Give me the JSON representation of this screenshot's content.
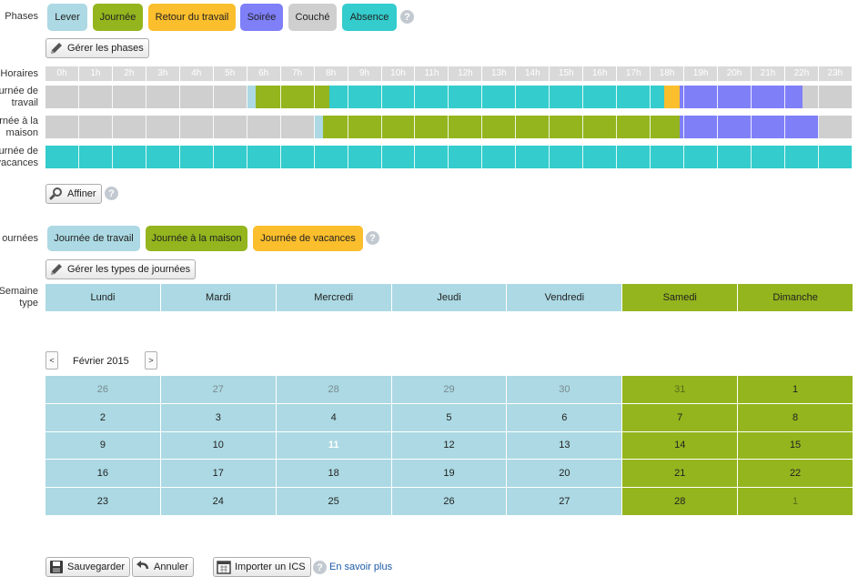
{
  "colors": {
    "lever": "#acd9e3",
    "journee": "#94b51e",
    "retour": "#fbbe2c",
    "soiree": "#7f7ff8",
    "couche": "#cfcfcf",
    "absence": "#34cccc",
    "weekday": "#acd9e3",
    "weekend": "#94b51e"
  },
  "labels": {
    "phases": "Phases",
    "horaires": "Horaires",
    "journees": "ournées",
    "semaine_type": "Semaine\ntype"
  },
  "phases": [
    {
      "key": "lever",
      "label": "Lever"
    },
    {
      "key": "journee",
      "label": "Journée"
    },
    {
      "key": "retour",
      "label": "Retour du travail"
    },
    {
      "key": "soiree",
      "label": "Soirée"
    },
    {
      "key": "couche",
      "label": "Couché"
    },
    {
      "key": "absence",
      "label": "Absence"
    }
  ],
  "buttons": {
    "gerer_phases": "Gérer les phases",
    "affiner": "Affiner",
    "gerer_types": "Gérer les types de journées",
    "sauvegarder": "Sauvegarder",
    "annuler": "Annuler",
    "importer": "Importer un ICS"
  },
  "hours": [
    "0h",
    "1h",
    "2h",
    "3h",
    "4h",
    "5h",
    "6h",
    "7h",
    "8h",
    "9h",
    "10h",
    "11h",
    "12h",
    "13h",
    "14h",
    "15h",
    "16h",
    "17h",
    "18h",
    "19h",
    "20h",
    "21h",
    "22h",
    "23h"
  ],
  "timelines": [
    {
      "label": "urnée de\ntravail",
      "segments": [
        {
          "phase": "couche",
          "start": 0,
          "end": 6
        },
        {
          "phase": "lever",
          "start": 6,
          "end": 6.25
        },
        {
          "phase": "journee",
          "start": 6.25,
          "end": 8.45
        },
        {
          "phase": "absence",
          "start": 8.45,
          "end": 18.4
        },
        {
          "phase": "retour",
          "start": 18.4,
          "end": 18.85
        },
        {
          "phase": "soiree",
          "start": 18.85,
          "end": 22.5
        },
        {
          "phase": "couche",
          "start": 22.5,
          "end": 24
        }
      ]
    },
    {
      "label": "rnée à la\nmaison",
      "segments": [
        {
          "phase": "couche",
          "start": 0,
          "end": 8
        },
        {
          "phase": "lever",
          "start": 8,
          "end": 8.25
        },
        {
          "phase": "journee",
          "start": 8.25,
          "end": 18.85
        },
        {
          "phase": "soiree",
          "start": 18.85,
          "end": 23
        },
        {
          "phase": "couche",
          "start": 23,
          "end": 24
        }
      ]
    },
    {
      "label": "urnée de\nvacances",
      "segments": [
        {
          "phase": "absence",
          "start": 0,
          "end": 24
        }
      ]
    }
  ],
  "day_types": [
    {
      "key": "weekday",
      "label": "Journée de travail",
      "color": "#acd9e3"
    },
    {
      "key": "weekend",
      "label": "Journée à la maison",
      "color": "#94b51e"
    },
    {
      "key": "vacances",
      "label": "Journée de vacances",
      "color": "#fbbe2c"
    }
  ],
  "week": [
    {
      "day": "Lundi",
      "type": "weekday"
    },
    {
      "day": "Mardi",
      "type": "weekday"
    },
    {
      "day": "Mercredi",
      "type": "weekday"
    },
    {
      "day": "Jeudi",
      "type": "weekday"
    },
    {
      "day": "Vendredi",
      "type": "weekday"
    },
    {
      "day": "Samedi",
      "type": "weekend"
    },
    {
      "day": "Dimanche",
      "type": "weekend"
    }
  ],
  "calendar": {
    "month": "Février 2015",
    "prev": "<",
    "next": ">",
    "today": "11",
    "weeks": [
      [
        {
          "d": "26",
          "o": true
        },
        {
          "d": "27",
          "o": true
        },
        {
          "d": "28",
          "o": true
        },
        {
          "d": "29",
          "o": true
        },
        {
          "d": "30",
          "o": true
        },
        {
          "d": "31",
          "o": true
        },
        {
          "d": "1",
          "o": false
        }
      ],
      [
        {
          "d": "2",
          "o": false
        },
        {
          "d": "3",
          "o": false
        },
        {
          "d": "4",
          "o": false
        },
        {
          "d": "5",
          "o": false
        },
        {
          "d": "6",
          "o": false
        },
        {
          "d": "7",
          "o": false
        },
        {
          "d": "8",
          "o": false
        }
      ],
      [
        {
          "d": "9",
          "o": false
        },
        {
          "d": "10",
          "o": false
        },
        {
          "d": "11",
          "o": false
        },
        {
          "d": "12",
          "o": false
        },
        {
          "d": "13",
          "o": false
        },
        {
          "d": "14",
          "o": false
        },
        {
          "d": "15",
          "o": false
        }
      ],
      [
        {
          "d": "16",
          "o": false
        },
        {
          "d": "17",
          "o": false
        },
        {
          "d": "18",
          "o": false
        },
        {
          "d": "19",
          "o": false
        },
        {
          "d": "20",
          "o": false
        },
        {
          "d": "21",
          "o": false
        },
        {
          "d": "22",
          "o": false
        }
      ],
      [
        {
          "d": "23",
          "o": false
        },
        {
          "d": "24",
          "o": false
        },
        {
          "d": "25",
          "o": false
        },
        {
          "d": "26",
          "o": false
        },
        {
          "d": "27",
          "o": false
        },
        {
          "d": "28",
          "o": false
        },
        {
          "d": "1",
          "o": true
        }
      ]
    ]
  },
  "link_text": "En savoir plus",
  "help_glyph": "?"
}
